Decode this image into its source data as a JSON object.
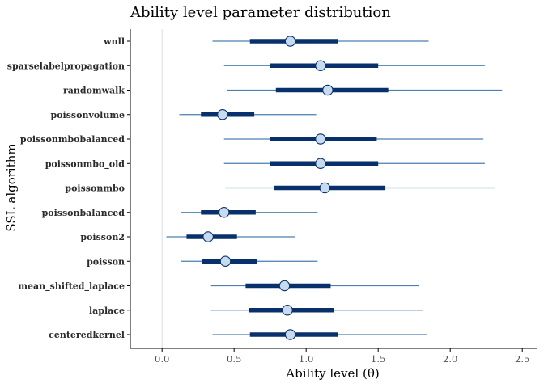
{
  "chart_data": {
    "type": "interval",
    "title": "Ability level parameter distribution",
    "xlabel": "Ability level (θ)",
    "ylabel": "SSL algorithm",
    "xlim": [
      -0.22,
      2.6
    ],
    "x_ticks": [
      "0.0",
      "0.5",
      "1.0",
      "1.5",
      "2.0",
      "2.5"
    ],
    "x_tick_values": [
      0.0,
      0.5,
      1.0,
      1.5,
      2.0,
      2.5
    ],
    "reference_line_x": 0.0,
    "grid": false,
    "legend": "none",
    "colors": {
      "outer_interval": "#4a7fb0",
      "inner_interval": "#08306b",
      "point_fill": "#c6dbef",
      "point_stroke": "#08306b",
      "reference_line": "#dddddd",
      "axis": "#000000"
    },
    "rows": [
      {
        "label": "wnll",
        "median": 0.89,
        "inner": [
          0.61,
          1.22
        ],
        "outer": [
          0.35,
          1.85
        ]
      },
      {
        "label": "sparselabelpropagation",
        "median": 1.1,
        "inner": [
          0.75,
          1.5
        ],
        "outer": [
          0.43,
          2.24
        ]
      },
      {
        "label": "randomwalk",
        "median": 1.15,
        "inner": [
          0.79,
          1.57
        ],
        "outer": [
          0.45,
          2.36
        ]
      },
      {
        "label": "poissonvolume",
        "median": 0.42,
        "inner": [
          0.27,
          0.64
        ],
        "outer": [
          0.12,
          1.07
        ]
      },
      {
        "label": "poissonmbobalanced",
        "median": 1.1,
        "inner": [
          0.75,
          1.49
        ],
        "outer": [
          0.43,
          2.23
        ]
      },
      {
        "label": "poissonmbo_old",
        "median": 1.1,
        "inner": [
          0.75,
          1.5
        ],
        "outer": [
          0.43,
          2.24
        ]
      },
      {
        "label": "poissonmbo",
        "median": 1.13,
        "inner": [
          0.78,
          1.55
        ],
        "outer": [
          0.44,
          2.31
        ]
      },
      {
        "label": "poissonbalanced",
        "median": 0.43,
        "inner": [
          0.27,
          0.65
        ],
        "outer": [
          0.13,
          1.08
        ]
      },
      {
        "label": "poisson2",
        "median": 0.32,
        "inner": [
          0.17,
          0.52
        ],
        "outer": [
          0.03,
          0.92
        ]
      },
      {
        "label": "poisson",
        "median": 0.44,
        "inner": [
          0.28,
          0.66
        ],
        "outer": [
          0.13,
          1.08
        ]
      },
      {
        "label": "mean_shifted_laplace",
        "median": 0.85,
        "inner": [
          0.58,
          1.17
        ],
        "outer": [
          0.34,
          1.78
        ]
      },
      {
        "label": "laplace",
        "median": 0.87,
        "inner": [
          0.6,
          1.19
        ],
        "outer": [
          0.34,
          1.81
        ]
      },
      {
        "label": "centeredkernel",
        "median": 0.89,
        "inner": [
          0.61,
          1.22
        ],
        "outer": [
          0.35,
          1.84
        ]
      }
    ]
  }
}
